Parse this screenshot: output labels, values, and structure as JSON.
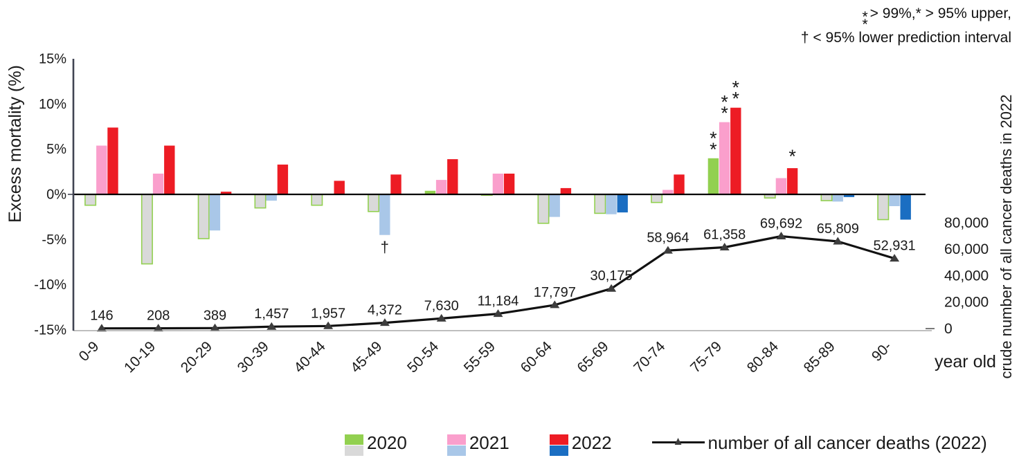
{
  "note": {
    "stacked_top": "*",
    "stacked_bottom": "*",
    "line1": "> 99%,* > 95% upper,",
    "line2": "† < 95% lower prediction interval"
  },
  "chart_data": {
    "type": "bar",
    "subtype": "combo-bar-line",
    "categories": [
      "0-9",
      "10-19",
      "20-29",
      "30-39",
      "40-44",
      "45-49",
      "50-54",
      "55-59",
      "60-64",
      "65-69",
      "70-74",
      "75-79",
      "80-84",
      "85-89",
      "90-"
    ],
    "bar_series": [
      {
        "name": "2020",
        "values": [
          -1.2,
          -7.7,
          -4.9,
          -1.5,
          -1.2,
          -1.9,
          0.4,
          -0.1,
          -3.2,
          -2.1,
          -0.9,
          4.0,
          -0.4,
          -0.7,
          -2.8
        ],
        "pos_color": "#92d050",
        "neg_color": "#d9d9d9",
        "neg_border": "#92d050"
      },
      {
        "name": "2021",
        "values": [
          5.4,
          2.3,
          -4.0,
          -0.7,
          0,
          -4.5,
          1.6,
          2.3,
          -2.5,
          -2.2,
          0.5,
          8.0,
          1.8,
          -0.8,
          -1.3
        ],
        "pos_color": "#fa9fcc",
        "neg_color": "#a9c7e8"
      },
      {
        "name": "2022",
        "values": [
          7.4,
          5.4,
          0.3,
          3.3,
          1.5,
          2.2,
          3.9,
          2.3,
          0.7,
          -2.0,
          2.2,
          9.6,
          2.9,
          -0.3,
          -2.8
        ],
        "pos_color": "#ed1c24",
        "neg_color": "#1b6ec2"
      }
    ],
    "significance": [
      {
        "group": "45-49",
        "series": "2021",
        "symbol": "†"
      },
      {
        "group": "75-79",
        "series": "2020",
        "symbol": "**"
      },
      {
        "group": "75-79",
        "series": "2021",
        "symbol": "**"
      },
      {
        "group": "75-79",
        "series": "2022",
        "symbol": "**"
      },
      {
        "group": "80-84",
        "series": "2022",
        "symbol": "*"
      }
    ],
    "line_series": {
      "name": "number of all cancer deaths (2022)",
      "values": [
        146,
        208,
        389,
        1457,
        1957,
        4372,
        7630,
        11184,
        17797,
        30175,
        58964,
        61358,
        69692,
        65809,
        52931
      ],
      "labels": [
        "146",
        "208",
        "389",
        "1,457",
        "1,957",
        "4,372",
        "7,630",
        "11,184",
        "17,797",
        "30,175",
        "58,964",
        "61,358",
        "69,692",
        "65,809",
        "52,931"
      ],
      "color": "#111111",
      "marker_color": "#3d3d3d"
    },
    "left_axis": {
      "label": "Excess mortality  (%)",
      "ticks": [
        "15%",
        "10%",
        "5%",
        "0%",
        "-5%",
        "-10%",
        "-15%"
      ],
      "tick_values": [
        15,
        10,
        5,
        0,
        -5,
        -10,
        -15
      ],
      "range": [
        -15,
        15
      ],
      "grid": false
    },
    "right_axis": {
      "label": "crude number of all cancer deaths in 2022",
      "ticks": [
        "80,000",
        "60,000",
        "40,000",
        "20,000",
        "0"
      ],
      "tick_values": [
        80000,
        60000,
        40000,
        20000,
        0
      ],
      "range_shown": [
        0,
        80000
      ]
    },
    "x_axis": {
      "label": "year old"
    },
    "legend_position": "bottom"
  },
  "legend": {
    "items": [
      {
        "label": "2020",
        "top_color": "#92d050",
        "bottom_color": "#d9d9d9"
      },
      {
        "label": "2021",
        "top_color": "#fa9fcc",
        "bottom_color": "#a9c7e8"
      },
      {
        "label": "2022",
        "top_color": "#ed1c24",
        "bottom_color": "#1b6ec2"
      }
    ],
    "line_item": {
      "label": "number of all cancer deaths (2022)",
      "marker": "▲"
    }
  }
}
